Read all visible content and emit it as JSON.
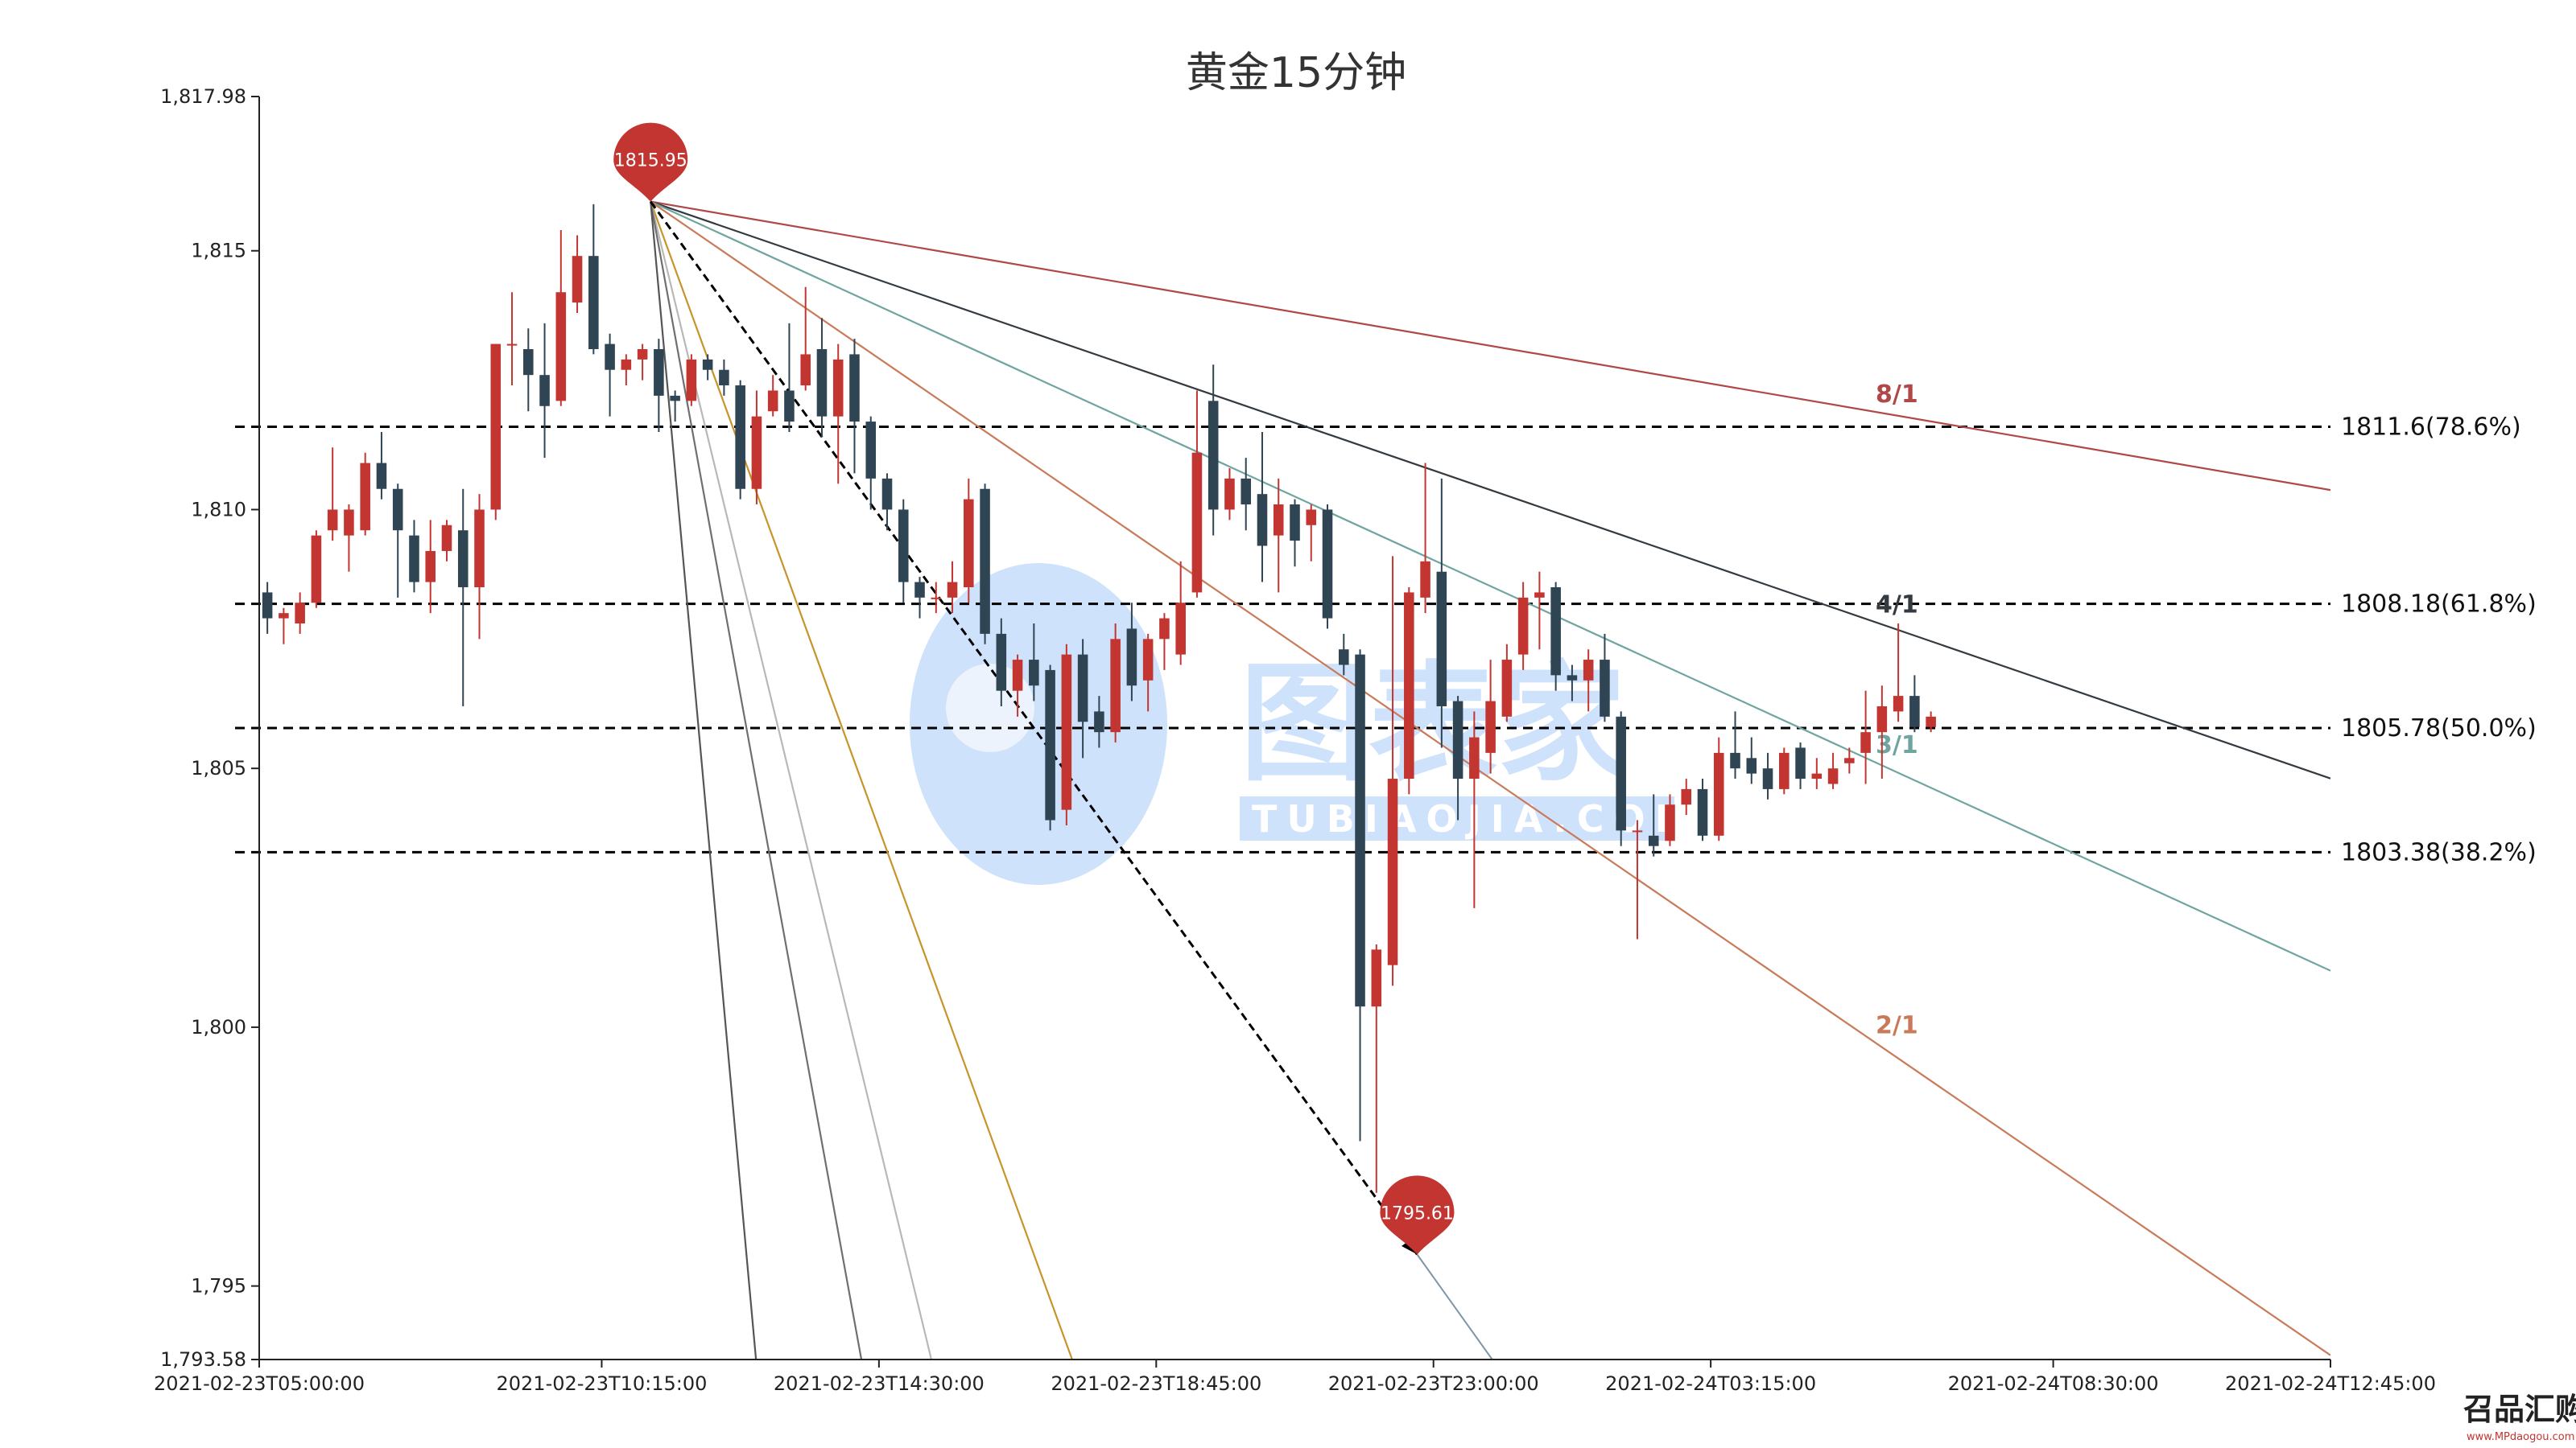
{
  "title": "黄金15分钟",
  "watermark": {
    "brand": "图表家",
    "sub": "TUBIAOJIA.COM",
    "color": "#cfe2fb"
  },
  "corner_logo": {
    "brand": "召品汇购",
    "sub": "www.MPdaogou.com"
  },
  "colors": {
    "up": "#c23531",
    "down": "#2f4554",
    "fib_line": "#000000",
    "grid": "#000000"
  },
  "chart_data": {
    "type": "candlestick",
    "interval_minutes": 15,
    "x_start": "2021-02-23T05:00:00",
    "x_end": "2021-02-24T12:45:00",
    "x_ticks": [
      "2021-02-23T05:00:00",
      "2021-02-23T10:15:00",
      "2021-02-23T14:30:00",
      "2021-02-23T18:45:00",
      "2021-02-23T23:00:00",
      "2021-02-24T03:15:00",
      "2021-02-24T08:30:00",
      "2021-02-24T12:45:00"
    ],
    "y_range": [
      1793.58,
      1817.98
    ],
    "y_ticks": [
      {
        "value": 1817.98,
        "label": "1,817.98"
      },
      {
        "value": 1815,
        "label": "1,815"
      },
      {
        "value": 1810,
        "label": "1,810"
      },
      {
        "value": 1805,
        "label": "1,805"
      },
      {
        "value": 1800,
        "label": "1,800"
      },
      {
        "value": 1795,
        "label": "1,795"
      },
      {
        "value": 1793.58,
        "label": "1,793.58"
      }
    ],
    "candles": [
      [
        1808.4,
        1807.9,
        1808.6,
        1807.6
      ],
      [
        1807.9,
        1808.0,
        1808.1,
        1807.4
      ],
      [
        1807.8,
        1808.2,
        1808.4,
        1807.6
      ],
      [
        1808.2,
        1809.5,
        1809.6,
        1808.1
      ],
      [
        1809.6,
        1810.0,
        1811.2,
        1809.4
      ],
      [
        1809.5,
        1810.0,
        1810.1,
        1808.8
      ],
      [
        1809.6,
        1810.9,
        1811.1,
        1809.5
      ],
      [
        1810.9,
        1810.4,
        1811.5,
        1810.2
      ],
      [
        1810.4,
        1809.6,
        1810.5,
        1808.3
      ],
      [
        1809.5,
        1808.6,
        1809.8,
        1808.4
      ],
      [
        1808.6,
        1809.2,
        1809.8,
        1808.0
      ],
      [
        1809.2,
        1809.7,
        1809.8,
        1809.0
      ],
      [
        1809.6,
        1808.5,
        1810.4,
        1806.2
      ],
      [
        1808.5,
        1810.0,
        1810.3,
        1807.5
      ],
      [
        1810.0,
        1813.2,
        1813.2,
        1809.8
      ],
      [
        1813.2,
        1813.2,
        1814.2,
        1812.4
      ],
      [
        1813.1,
        1812.6,
        1813.5,
        1811.9
      ],
      [
        1812.6,
        1812.0,
        1813.6,
        1811.0
      ],
      [
        1812.1,
        1814.2,
        1815.4,
        1812.0
      ],
      [
        1814.0,
        1814.9,
        1815.3,
        1813.8
      ],
      [
        1814.9,
        1813.1,
        1815.9,
        1813.0
      ],
      [
        1813.2,
        1812.7,
        1813.4,
        1811.8
      ],
      [
        1812.7,
        1812.9,
        1813.0,
        1812.4
      ],
      [
        1812.9,
        1813.1,
        1813.2,
        1812.5
      ],
      [
        1813.1,
        1812.2,
        1813.3,
        1811.5
      ],
      [
        1812.2,
        1812.1,
        1812.3,
        1811.7
      ],
      [
        1812.1,
        1812.9,
        1813.0,
        1812.0
      ],
      [
        1812.9,
        1812.7,
        1813.0,
        1812.5
      ],
      [
        1812.7,
        1812.4,
        1812.9,
        1812.2
      ],
      [
        1812.4,
        1810.4,
        1812.5,
        1810.2
      ],
      [
        1810.4,
        1811.8,
        1812.3,
        1810.1
      ],
      [
        1811.9,
        1812.3,
        1812.6,
        1811.8
      ],
      [
        1812.3,
        1811.7,
        1813.6,
        1811.5
      ],
      [
        1812.4,
        1813.0,
        1814.3,
        1812.3
      ],
      [
        1813.1,
        1811.8,
        1813.7,
        1811.4
      ],
      [
        1811.8,
        1812.9,
        1813.2,
        1810.5
      ],
      [
        1813.0,
        1811.7,
        1813.3,
        1810.7
      ],
      [
        1811.7,
        1810.6,
        1811.8,
        1810.0
      ],
      [
        1810.6,
        1810.0,
        1810.7,
        1809.6
      ],
      [
        1810.0,
        1808.6,
        1810.2,
        1808.2
      ],
      [
        1808.6,
        1808.3,
        1808.7,
        1807.9
      ],
      [
        1808.3,
        1808.3,
        1808.6,
        1808.0
      ],
      [
        1808.3,
        1808.6,
        1809.0,
        1808.0
      ],
      [
        1808.5,
        1810.2,
        1810.6,
        1808.2
      ],
      [
        1810.4,
        1807.6,
        1810.5,
        1807.4
      ],
      [
        1807.6,
        1806.5,
        1807.9,
        1806.2
      ],
      [
        1806.5,
        1807.1,
        1807.2,
        1806.0
      ],
      [
        1807.1,
        1806.6,
        1807.8,
        1806.3
      ],
      [
        1806.9,
        1804.0,
        1807.0,
        1803.8
      ],
      [
        1804.2,
        1807.2,
        1807.4,
        1803.9
      ],
      [
        1807.2,
        1805.9,
        1807.5,
        1805.2
      ],
      [
        1806.1,
        1805.7,
        1806.4,
        1805.4
      ],
      [
        1805.7,
        1807.5,
        1807.8,
        1805.5
      ],
      [
        1807.7,
        1806.6,
        1808.2,
        1806.3
      ],
      [
        1806.7,
        1807.5,
        1807.6,
        1806.1
      ],
      [
        1807.5,
        1807.9,
        1808.0,
        1806.9
      ],
      [
        1807.2,
        1808.2,
        1809.0,
        1807.0
      ],
      [
        1808.4,
        1811.1,
        1812.3,
        1808.3
      ],
      [
        1812.1,
        1810.0,
        1812.8,
        1809.5
      ],
      [
        1810.0,
        1810.6,
        1810.8,
        1809.8
      ],
      [
        1810.6,
        1810.1,
        1811.0,
        1809.6
      ],
      [
        1810.3,
        1809.3,
        1811.5,
        1808.6
      ],
      [
        1809.5,
        1810.1,
        1810.6,
        1808.4
      ],
      [
        1810.1,
        1809.4,
        1810.2,
        1808.9
      ],
      [
        1809.7,
        1810.0,
        1810.1,
        1809.0
      ],
      [
        1810.0,
        1807.9,
        1810.1,
        1807.7
      ],
      [
        1807.3,
        1807.0,
        1807.6,
        1806.8
      ],
      [
        1807.2,
        1800.4,
        1807.3,
        1797.8
      ],
      [
        1800.4,
        1801.5,
        1801.6,
        1796.8
      ],
      [
        1801.2,
        1804.8,
        1809.1,
        1800.8
      ],
      [
        1804.8,
        1808.4,
        1808.5,
        1804.5
      ],
      [
        1808.3,
        1809.0,
        1810.9,
        1808.0
      ],
      [
        1808.8,
        1806.2,
        1810.6,
        1805.4
      ],
      [
        1806.3,
        1804.8,
        1806.4,
        1804.0
      ],
      [
        1804.8,
        1805.6,
        1806.1,
        1802.3
      ],
      [
        1805.3,
        1806.3,
        1807.1,
        1804.9
      ],
      [
        1806.0,
        1807.1,
        1807.4,
        1805.9
      ],
      [
        1807.2,
        1808.3,
        1808.6,
        1806.9
      ],
      [
        1808.3,
        1808.4,
        1808.8,
        1807.3
      ],
      [
        1808.5,
        1806.8,
        1808.6,
        1806.5
      ],
      [
        1806.8,
        1806.7,
        1807.0,
        1806.3
      ],
      [
        1806.7,
        1807.1,
        1807.3,
        1806.1
      ],
      [
        1807.1,
        1806.0,
        1807.6,
        1805.9
      ],
      [
        1806.0,
        1803.8,
        1806.1,
        1803.5
      ],
      [
        1803.8,
        1803.8,
        1804.0,
        1801.7
      ],
      [
        1803.7,
        1803.5,
        1804.5,
        1803.3
      ],
      [
        1803.6,
        1804.3,
        1804.5,
        1803.5
      ],
      [
        1804.3,
        1804.6,
        1804.8,
        1804.1
      ],
      [
        1804.6,
        1803.7,
        1804.8,
        1803.6
      ],
      [
        1803.7,
        1805.3,
        1805.6,
        1803.6
      ],
      [
        1805.3,
        1805.0,
        1806.1,
        1804.8
      ],
      [
        1805.2,
        1804.9,
        1805.6,
        1804.7
      ],
      [
        1805.0,
        1804.6,
        1805.3,
        1804.4
      ],
      [
        1804.6,
        1805.3,
        1805.4,
        1804.5
      ],
      [
        1805.4,
        1804.8,
        1805.5,
        1804.6
      ],
      [
        1804.8,
        1804.9,
        1805.2,
        1804.6
      ],
      [
        1804.7,
        1805.0,
        1805.3,
        1804.6
      ],
      [
        1805.1,
        1805.2,
        1805.4,
        1804.9
      ],
      [
        1805.3,
        1805.7,
        1806.5,
        1804.7
      ],
      [
        1805.7,
        1806.2,
        1806.6,
        1804.8
      ],
      [
        1806.1,
        1806.4,
        1807.8,
        1805.9
      ],
      [
        1806.4,
        1805.8,
        1806.8,
        1805.7
      ],
      [
        1805.8,
        1806.0,
        1806.1,
        1805.7
      ]
    ],
    "fib_levels": [
      {
        "value": 1811.6,
        "label": "1811.6(78.6%)"
      },
      {
        "value": 1808.18,
        "label": "1808.18(61.8%)"
      },
      {
        "value": 1805.78,
        "label": "1805.78(50.0%)"
      },
      {
        "value": 1803.38,
        "label": "1803.38(38.2%)"
      }
    ],
    "markers": [
      {
        "label": "1815.95",
        "value": 1815.95,
        "time": "2021-02-23T11:00:00"
      },
      {
        "label": "1795.61",
        "value": 1795.61,
        "time": "2021-02-23T22:45:00"
      }
    ],
    "gann_fan": {
      "origin": {
        "time": "2021-02-23T11:00:00",
        "value": 1815.95
      },
      "base": {
        "time": "2021-02-23T22:45:00",
        "value": 1795.61
      },
      "rays": [
        {
          "ratio": 8,
          "label": "8/1",
          "color": "#b04848"
        },
        {
          "ratio": 4,
          "label": "4/1",
          "color": "#333a40"
        },
        {
          "ratio": 3,
          "label": "3/1",
          "color": "#6fa5a0"
        },
        {
          "ratio": 2,
          "label": "2/1",
          "color": "#c97a5a"
        },
        {
          "ratio": 0.5,
          "label": "",
          "color": "#c8942a"
        },
        {
          "ratio": 0.333,
          "label": "",
          "color": "#b8b8b8"
        },
        {
          "ratio": 0.25,
          "label": "",
          "color": "#6f6f6f"
        },
        {
          "ratio": 0.125,
          "label": "",
          "color": "#555555"
        }
      ]
    }
  }
}
